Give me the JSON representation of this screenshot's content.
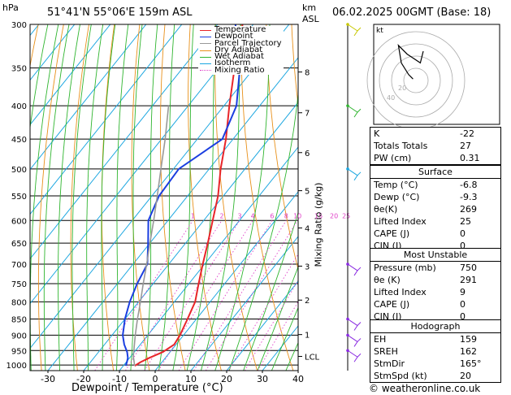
{
  "header": {
    "hpa_label": "hPa",
    "location": "51°41'N  55°06'E  159m  ASL",
    "km_label": "km",
    "asl_label": "ASL",
    "date": "06.02.2025  00GMT  (Base: 18)"
  },
  "legend": [
    {
      "label": "Temperature",
      "color": "#e8252a",
      "style": "solid"
    },
    {
      "label": "Dewpoint",
      "color": "#1a3ee0",
      "style": "solid"
    },
    {
      "label": "Parcel Trajectory",
      "color": "#999999",
      "style": "solid"
    },
    {
      "label": "Dry Adiabat",
      "color": "#e8901a",
      "style": "solid"
    },
    {
      "label": "Wet Adiabat",
      "color": "#2fb52f",
      "style": "solid"
    },
    {
      "label": "Isotherm",
      "color": "#1aa6e0",
      "style": "solid"
    },
    {
      "label": "Mixing Ratio",
      "color": "#e040c8",
      "style": "dotted"
    }
  ],
  "chart_data": {
    "type": "line",
    "title": "",
    "xlabel": "Dewpoint / Temperature (°C)",
    "ylabel": "",
    "right_axis_label": "Mixing Ratio (g/kg)",
    "x_ticks": [
      -30,
      -20,
      -10,
      0,
      10,
      20,
      30,
      40
    ],
    "xlim": [
      -35,
      40
    ],
    "pressure_ticks": [
      300,
      350,
      400,
      450,
      500,
      550,
      600,
      650,
      700,
      750,
      800,
      850,
      900,
      950,
      1000
    ],
    "ylim": [
      300,
      1020
    ],
    "y_scale": "log",
    "km_ticks": [
      {
        "label": "8",
        "p": 355
      },
      {
        "label": "7",
        "p": 410
      },
      {
        "label": "6",
        "p": 472
      },
      {
        "label": "5",
        "p": 540
      },
      {
        "label": "4",
        "p": 616
      },
      {
        "label": "3",
        "p": 705
      },
      {
        "label": "2",
        "p": 795
      },
      {
        "label": "1",
        "p": 898
      },
      {
        "label": "LCL",
        "p": 970
      }
    ],
    "mixing_ratio_labels": [
      "1",
      "2",
      "3",
      "4",
      "6",
      "8",
      "10",
      "15",
      "20",
      "25"
    ],
    "mixing_ratio_values": [
      1,
      2,
      3,
      4,
      6,
      8,
      10,
      15,
      20,
      25
    ],
    "series": [
      {
        "name": "Temperature",
        "color": "#e8252a",
        "points": [
          [
            1003,
            -6.8
          ],
          [
            990,
            -6.0
          ],
          [
            975,
            -4.5
          ],
          [
            955,
            -2.0
          ],
          [
            930,
            -0.5
          ],
          [
            900,
            -1.0
          ],
          [
            850,
            -2.5
          ],
          [
            800,
            -4.2
          ],
          [
            750,
            -7.3
          ],
          [
            700,
            -10.5
          ],
          [
            650,
            -13.8
          ],
          [
            600,
            -17.5
          ],
          [
            550,
            -21.5
          ],
          [
            500,
            -26.8
          ],
          [
            450,
            -32.0
          ],
          [
            400,
            -38.5
          ],
          [
            350,
            -45.5
          ],
          [
            300,
            -53.0
          ]
        ]
      },
      {
        "name": "Dewpoint",
        "color": "#1a3ee0",
        "points": [
          [
            1003,
            -9.3
          ],
          [
            990,
            -9.8
          ],
          [
            975,
            -10.5
          ],
          [
            955,
            -12.0
          ],
          [
            930,
            -14.5
          ],
          [
            900,
            -17.0
          ],
          [
            850,
            -20.0
          ],
          [
            800,
            -22.5
          ],
          [
            750,
            -24.5
          ],
          [
            700,
            -26.0
          ],
          [
            650,
            -30.5
          ],
          [
            600,
            -35.5
          ],
          [
            550,
            -38.0
          ],
          [
            500,
            -38.5
          ],
          [
            450,
            -33.0
          ],
          [
            400,
            -36.5
          ],
          [
            350,
            -44.0
          ],
          [
            300,
            -55.0
          ]
        ]
      },
      {
        "name": "Parcel Trajectory",
        "color": "#999999",
        "points": [
          [
            1003,
            -6.8
          ],
          [
            970,
            -9.3
          ],
          [
            900,
            -13.5
          ],
          [
            850,
            -16.5
          ],
          [
            800,
            -19.5
          ],
          [
            750,
            -22.8
          ],
          [
            700,
            -26.2
          ],
          [
            650,
            -30.0
          ],
          [
            600,
            -34.0
          ],
          [
            550,
            -38.5
          ],
          [
            500,
            -43.5
          ],
          [
            450,
            -49.0
          ],
          [
            400,
            -55.5
          ]
        ]
      }
    ]
  },
  "indices": {
    "rows": [
      {
        "label": "K",
        "value": "-22"
      },
      {
        "label": "Totals Totals",
        "value": "27"
      },
      {
        "label": "PW (cm)",
        "value": "0.31"
      }
    ]
  },
  "surface": {
    "title": "Surface",
    "rows": [
      {
        "label": "Temp (°C)",
        "value": "-6.8"
      },
      {
        "label": "Dewp (°C)",
        "value": "-9.3"
      },
      {
        "label": "θe(K)",
        "value": "269"
      },
      {
        "label": "Lifted Index",
        "value": "25"
      },
      {
        "label": "CAPE (J)",
        "value": "0"
      },
      {
        "label": "CIN (J)",
        "value": "0"
      }
    ]
  },
  "most_unstable": {
    "title": "Most Unstable",
    "rows": [
      {
        "label": "Pressure (mb)",
        "value": "750"
      },
      {
        "label": "θe (K)",
        "value": "291"
      },
      {
        "label": "Lifted Index",
        "value": "9"
      },
      {
        "label": "CAPE (J)",
        "value": "0"
      },
      {
        "label": "CIN (J)",
        "value": "0"
      }
    ]
  },
  "hodograph_table": {
    "title": "Hodograph",
    "rows": [
      {
        "label": "EH",
        "value": "159"
      },
      {
        "label": "SREH",
        "value": "162"
      },
      {
        "label": "StmDir",
        "value": "165°"
      },
      {
        "label": "StmSpd (kt)",
        "value": "20"
      }
    ]
  },
  "hodograph": {
    "label": "kt",
    "ring_labels": [
      "20",
      "40"
    ],
    "trace": [
      [
        -0.2,
        0.1
      ],
      [
        -0.5,
        0.4
      ],
      [
        -1.0,
        1.2
      ],
      [
        -1.2,
        2.4
      ],
      [
        -0.6,
        1.8
      ],
      [
        0.3,
        1.2
      ],
      [
        0.5,
        2.0
      ]
    ]
  },
  "footer": {
    "copyright": "© weatheronline.co.uk"
  }
}
